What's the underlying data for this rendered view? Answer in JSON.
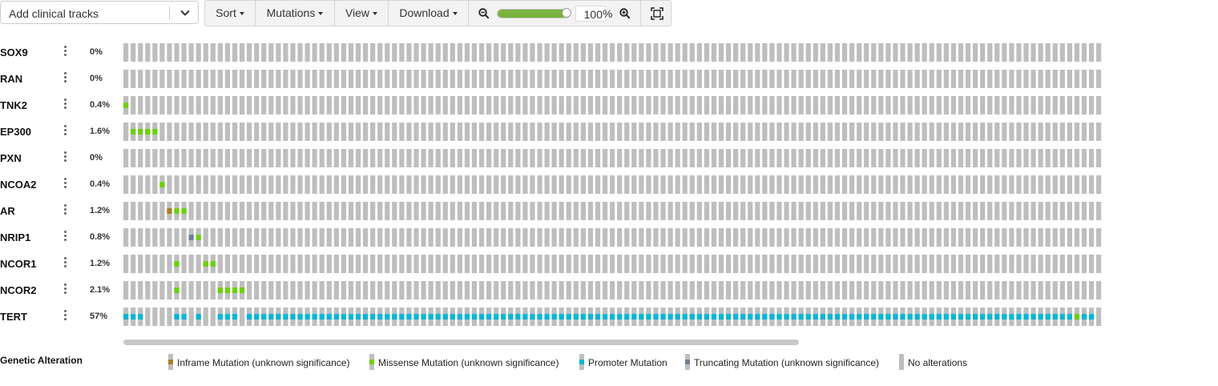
{
  "clinical_select": {
    "placeholder": "Add clinical tracks",
    "icon": "chevron-down-icon"
  },
  "toolbar": {
    "sort_label": "Sort",
    "mutations_label": "Mutations",
    "view_label": "View",
    "download_label": "Download",
    "zoom_value": "100",
    "zoom_unit": "%",
    "zoom_slider_level": 0.95
  },
  "colors": {
    "no_alteration": "#bebebe",
    "inframe": "#a68028",
    "missense": "#6cd00a",
    "promoter": "#00b6d6",
    "truncating": "#708090",
    "slider_fill": "#7ab33e"
  },
  "oncoprint": {
    "columns": 135,
    "genes": [
      {
        "name": "SOX9",
        "pct": "0%",
        "alterations": []
      },
      {
        "name": "RAN",
        "pct": "0%",
        "alterations": []
      },
      {
        "name": "TNK2",
        "pct": "0.4%",
        "alterations": [
          {
            "col": 0,
            "type": "missense"
          }
        ]
      },
      {
        "name": "EP300",
        "pct": "1.6%",
        "alterations": [
          {
            "col": 1,
            "type": "missense"
          },
          {
            "col": 2,
            "type": "missense"
          },
          {
            "col": 3,
            "type": "missense"
          },
          {
            "col": 4,
            "type": "missense"
          }
        ]
      },
      {
        "name": "PXN",
        "pct": "0%",
        "alterations": []
      },
      {
        "name": "NCOA2",
        "pct": "0.4%",
        "alterations": [
          {
            "col": 5,
            "type": "missense"
          }
        ]
      },
      {
        "name": "AR",
        "pct": "1.2%",
        "alterations": [
          {
            "col": 6,
            "type": "inframe"
          },
          {
            "col": 7,
            "type": "missense"
          },
          {
            "col": 8,
            "type": "missense"
          }
        ]
      },
      {
        "name": "NRIP1",
        "pct": "0.8%",
        "alterations": [
          {
            "col": 9,
            "type": "truncating"
          },
          {
            "col": 10,
            "type": "missense"
          }
        ]
      },
      {
        "name": "NCOR1",
        "pct": "1.2%",
        "alterations": [
          {
            "col": 7,
            "type": "missense"
          },
          {
            "col": 11,
            "type": "missense"
          },
          {
            "col": 12,
            "type": "missense"
          }
        ]
      },
      {
        "name": "NCOR2",
        "pct": "2.1%",
        "alterations": [
          {
            "col": 7,
            "type": "missense"
          },
          {
            "col": 13,
            "type": "missense"
          },
          {
            "col": 14,
            "type": "missense"
          },
          {
            "col": 15,
            "type": "missense"
          },
          {
            "col": 16,
            "type": "missense"
          }
        ]
      },
      {
        "name": "TERT",
        "pct": "57%",
        "promoter_all_except": [
          3,
          4,
          5,
          6,
          9,
          11,
          12,
          16
        ],
        "alterations": [
          {
            "col": 131,
            "type": "missense"
          }
        ]
      }
    ]
  },
  "legend": {
    "title": "Genetic Alteration",
    "items": [
      {
        "key": "inframe",
        "label": "Inframe Mutation (unknown significance)"
      },
      {
        "key": "missense",
        "label": "Missense Mutation (unknown significance)"
      },
      {
        "key": "promoter",
        "label": "Promoter Mutation"
      },
      {
        "key": "truncating",
        "label": "Truncating Mutation (unknown significance)"
      },
      {
        "key": "none",
        "label": "No alterations"
      }
    ]
  }
}
